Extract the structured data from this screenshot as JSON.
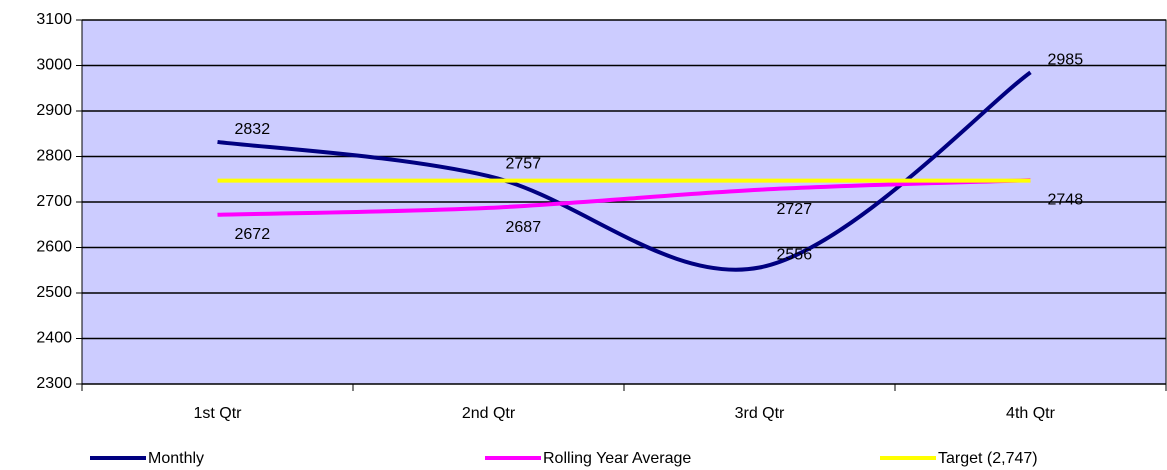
{
  "chart_data": {
    "type": "line",
    "categories": [
      "1st Qtr",
      "2nd Qtr",
      "3rd Qtr",
      "4th Qtr"
    ],
    "series": [
      {
        "name": "Monthly",
        "color": "#000080",
        "smooth": true,
        "data_labels": true,
        "values": [
          2832,
          2757,
          2556,
          2985
        ]
      },
      {
        "name": "Rolling Year Average",
        "color": "#ff00ff",
        "smooth": true,
        "data_labels": true,
        "values": [
          2672,
          2687,
          2727,
          2748
        ]
      },
      {
        "name": "Target (2,747)",
        "color": "#ffff00",
        "smooth": false,
        "data_labels": false,
        "values": [
          2747,
          2747,
          2747,
          2747
        ]
      }
    ],
    "ylim": [
      2300,
      3100
    ],
    "yticks": [
      2300,
      2400,
      2500,
      2600,
      2700,
      2800,
      2900,
      3000,
      3100
    ],
    "grid": true,
    "plot_background": "#ccccff",
    "legend": "bottom"
  }
}
